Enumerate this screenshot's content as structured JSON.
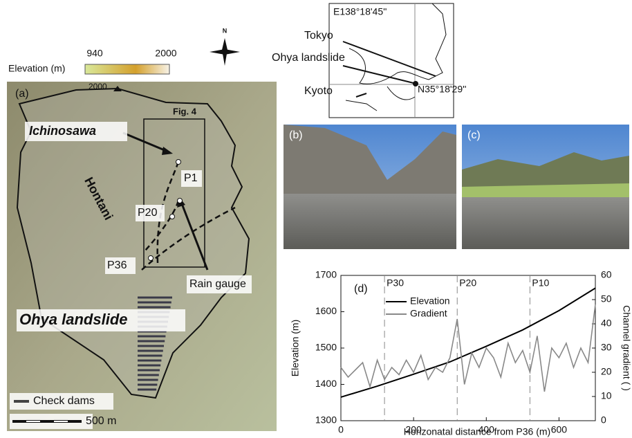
{
  "legend_elevation": {
    "title": "Elevation (m)",
    "min": "940",
    "max": "2000"
  },
  "north": "N",
  "inset": {
    "longitude": "E138°18'45''",
    "latitude": "N35°18'29''",
    "tokyo": "Tokyo",
    "ohya": "Ohya landslide",
    "kyoto": "Kyoto"
  },
  "map": {
    "panel": "(a)",
    "peak": "2000",
    "fig4": "Fig. 4",
    "ichinosawa": "Ichinosawa",
    "p1": "P1",
    "p20": "P20",
    "hontani": "Hontani",
    "p36": "P36",
    "rain_gauge": "Rain gauge",
    "ohya": "Ohya landslide",
    "check_dams": "Check dams",
    "scale": "500 m"
  },
  "photos": {
    "b": "(b)",
    "c": "(c)"
  },
  "chart_data": {
    "type": "line",
    "panel": "(d)",
    "x_label": "Horizonatal distance from P36 (m)",
    "y_label": "Elevation (m)",
    "y2_label": "Channel gradient ( )",
    "xlim": [
      0,
      700
    ],
    "xticks": [
      0,
      200,
      400,
      600
    ],
    "ylim": [
      1300,
      1700
    ],
    "yticks": [
      1300,
      1400,
      1500,
      1600,
      1700
    ],
    "y2lim": [
      0,
      60
    ],
    "y2ticks": [
      0,
      10,
      20,
      30,
      40,
      50,
      60
    ],
    "markers": [
      {
        "label": "P30",
        "x": 120
      },
      {
        "label": "P20",
        "x": 320
      },
      {
        "label": "P10",
        "x": 520
      }
    ],
    "series": [
      {
        "name": "Elevation",
        "color": "#000000",
        "x": [
          0,
          100,
          200,
          300,
          400,
          500,
          600,
          700
        ],
        "values": [
          1365,
          1395,
          1428,
          1462,
          1505,
          1550,
          1603,
          1665
        ]
      },
      {
        "name": "Gradient",
        "color": "#888888",
        "axis": "y2",
        "x": [
          0,
          20,
          40,
          60,
          80,
          100,
          120,
          140,
          160,
          180,
          200,
          220,
          240,
          260,
          280,
          300,
          320,
          340,
          360,
          380,
          400,
          420,
          440,
          460,
          480,
          500,
          520,
          540,
          560,
          580,
          600,
          620,
          640,
          660,
          680,
          700
        ],
        "values": [
          22,
          18,
          21,
          24,
          14,
          25,
          17,
          22,
          19,
          25,
          20,
          27,
          17,
          22,
          20,
          26,
          42,
          15,
          28,
          22,
          30,
          26,
          18,
          32,
          24,
          29,
          20,
          35,
          12,
          30,
          26,
          32,
          22,
          30,
          24,
          48
        ]
      }
    ]
  }
}
